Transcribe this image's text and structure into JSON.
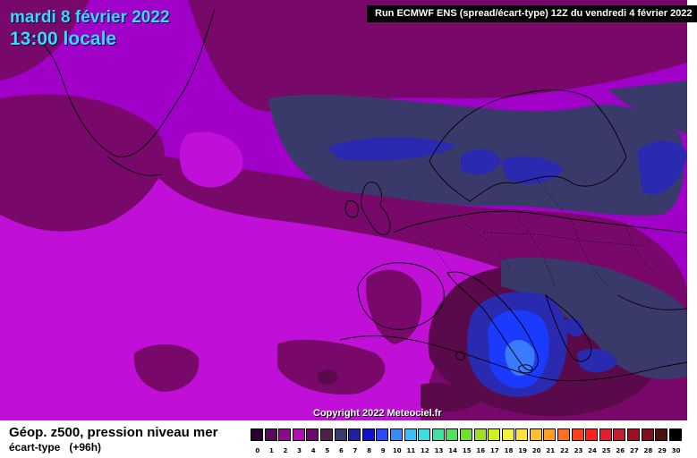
{
  "header": {
    "date": "mardi 8 février 2022",
    "time": "13:00 locale",
    "run": "Run ECMWF ENS (spread/écart-type) 12Z du vendredi 4 février 2022"
  },
  "copyright": "Copyright 2022 Meteociel.fr",
  "footer": {
    "parameter": "Géop. z500, pression niveau mer",
    "subtitle": "écart-type",
    "lead": "(+96h)"
  },
  "legend": {
    "ticks": [
      "0",
      "1",
      "2",
      "3",
      "4",
      "5",
      "6",
      "7",
      "8",
      "9",
      "10",
      "11",
      "12",
      "13",
      "14",
      "15",
      "16",
      "17",
      "18",
      "19",
      "20",
      "21",
      "22",
      "23",
      "24",
      "25",
      "26",
      "27",
      "28",
      "29",
      "30"
    ],
    "colors": [
      "#2a0030",
      "#5a0a5a",
      "#8a0a8a",
      "#b010b0",
      "#6a0a6a",
      "#50204a",
      "#3a3a70",
      "#2020a0",
      "#1010d0",
      "#2a4aff",
      "#3a8aff",
      "#3ac0ff",
      "#3ae0e0",
      "#40e0a0",
      "#50e060",
      "#70e030",
      "#a0e020",
      "#d0f020",
      "#f0f040",
      "#ffe040",
      "#ffc030",
      "#ffa020",
      "#ff7020",
      "#ff4020",
      "#ff2020",
      "#e02030",
      "#c02030",
      "#a01020",
      "#801020",
      "#501010",
      "#000000"
    ]
  },
  "map": {
    "region": "Atlantique Nord / Europe",
    "palette": {
      "magenta": "#a000c8",
      "bright_magenta": "#c010d8",
      "dark_purple": "#78086a",
      "plum": "#5a0a4a",
      "slate": "#3a3a6a",
      "blue": "#2a2ab0",
      "bright_blue": "#1a3aff",
      "light_blue": "#3a7aff"
    }
  }
}
